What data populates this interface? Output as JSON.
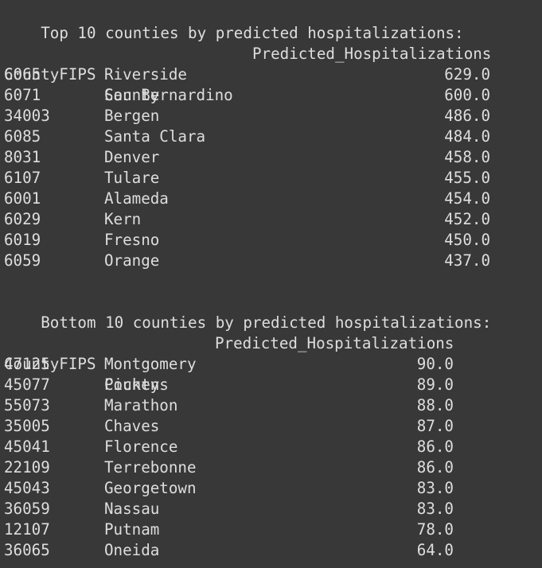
{
  "top": {
    "title": "Top 10 counties by predicted hospitalizations:",
    "column_header": "Predicted_Hospitalizations",
    "index_header_fips": "CountyFIPS",
    "index_header_county": "County",
    "rows": [
      {
        "fips": "6065",
        "county": "Riverside",
        "value": "629.0"
      },
      {
        "fips": "6071",
        "county": "San Bernardino",
        "value": "600.0"
      },
      {
        "fips": "34003",
        "county": "Bergen",
        "value": "486.0"
      },
      {
        "fips": "6085",
        "county": "Santa Clara",
        "value": "484.0"
      },
      {
        "fips": "8031",
        "county": "Denver",
        "value": "458.0"
      },
      {
        "fips": "6107",
        "county": "Tulare",
        "value": "455.0"
      },
      {
        "fips": "6001",
        "county": "Alameda",
        "value": "454.0"
      },
      {
        "fips": "6029",
        "county": "Kern",
        "value": "452.0"
      },
      {
        "fips": "6019",
        "county": "Fresno",
        "value": "450.0"
      },
      {
        "fips": "6059",
        "county": "Orange",
        "value": "437.0"
      }
    ]
  },
  "bottom": {
    "title": "Bottom 10 counties by predicted hospitalizations:",
    "column_header": "Predicted_Hospitalizations",
    "index_header_fips": "CountyFIPS",
    "index_header_county": "County",
    "rows": [
      {
        "fips": "47125",
        "county": "Montgomery",
        "value": "90.0"
      },
      {
        "fips": "45077",
        "county": "Pickens",
        "value": "89.0"
      },
      {
        "fips": "55073",
        "county": "Marathon",
        "value": "88.0"
      },
      {
        "fips": "35005",
        "county": "Chaves",
        "value": "87.0"
      },
      {
        "fips": "45041",
        "county": "Florence",
        "value": "86.0"
      },
      {
        "fips": "22109",
        "county": "Terrebonne",
        "value": "86.0"
      },
      {
        "fips": "45043",
        "county": "Georgetown",
        "value": "83.0"
      },
      {
        "fips": "36059",
        "county": "Nassau",
        "value": "83.0"
      },
      {
        "fips": "12107",
        "county": "Putnam",
        "value": "78.0"
      },
      {
        "fips": "36065",
        "county": "Oneida",
        "value": "64.0"
      }
    ]
  }
}
